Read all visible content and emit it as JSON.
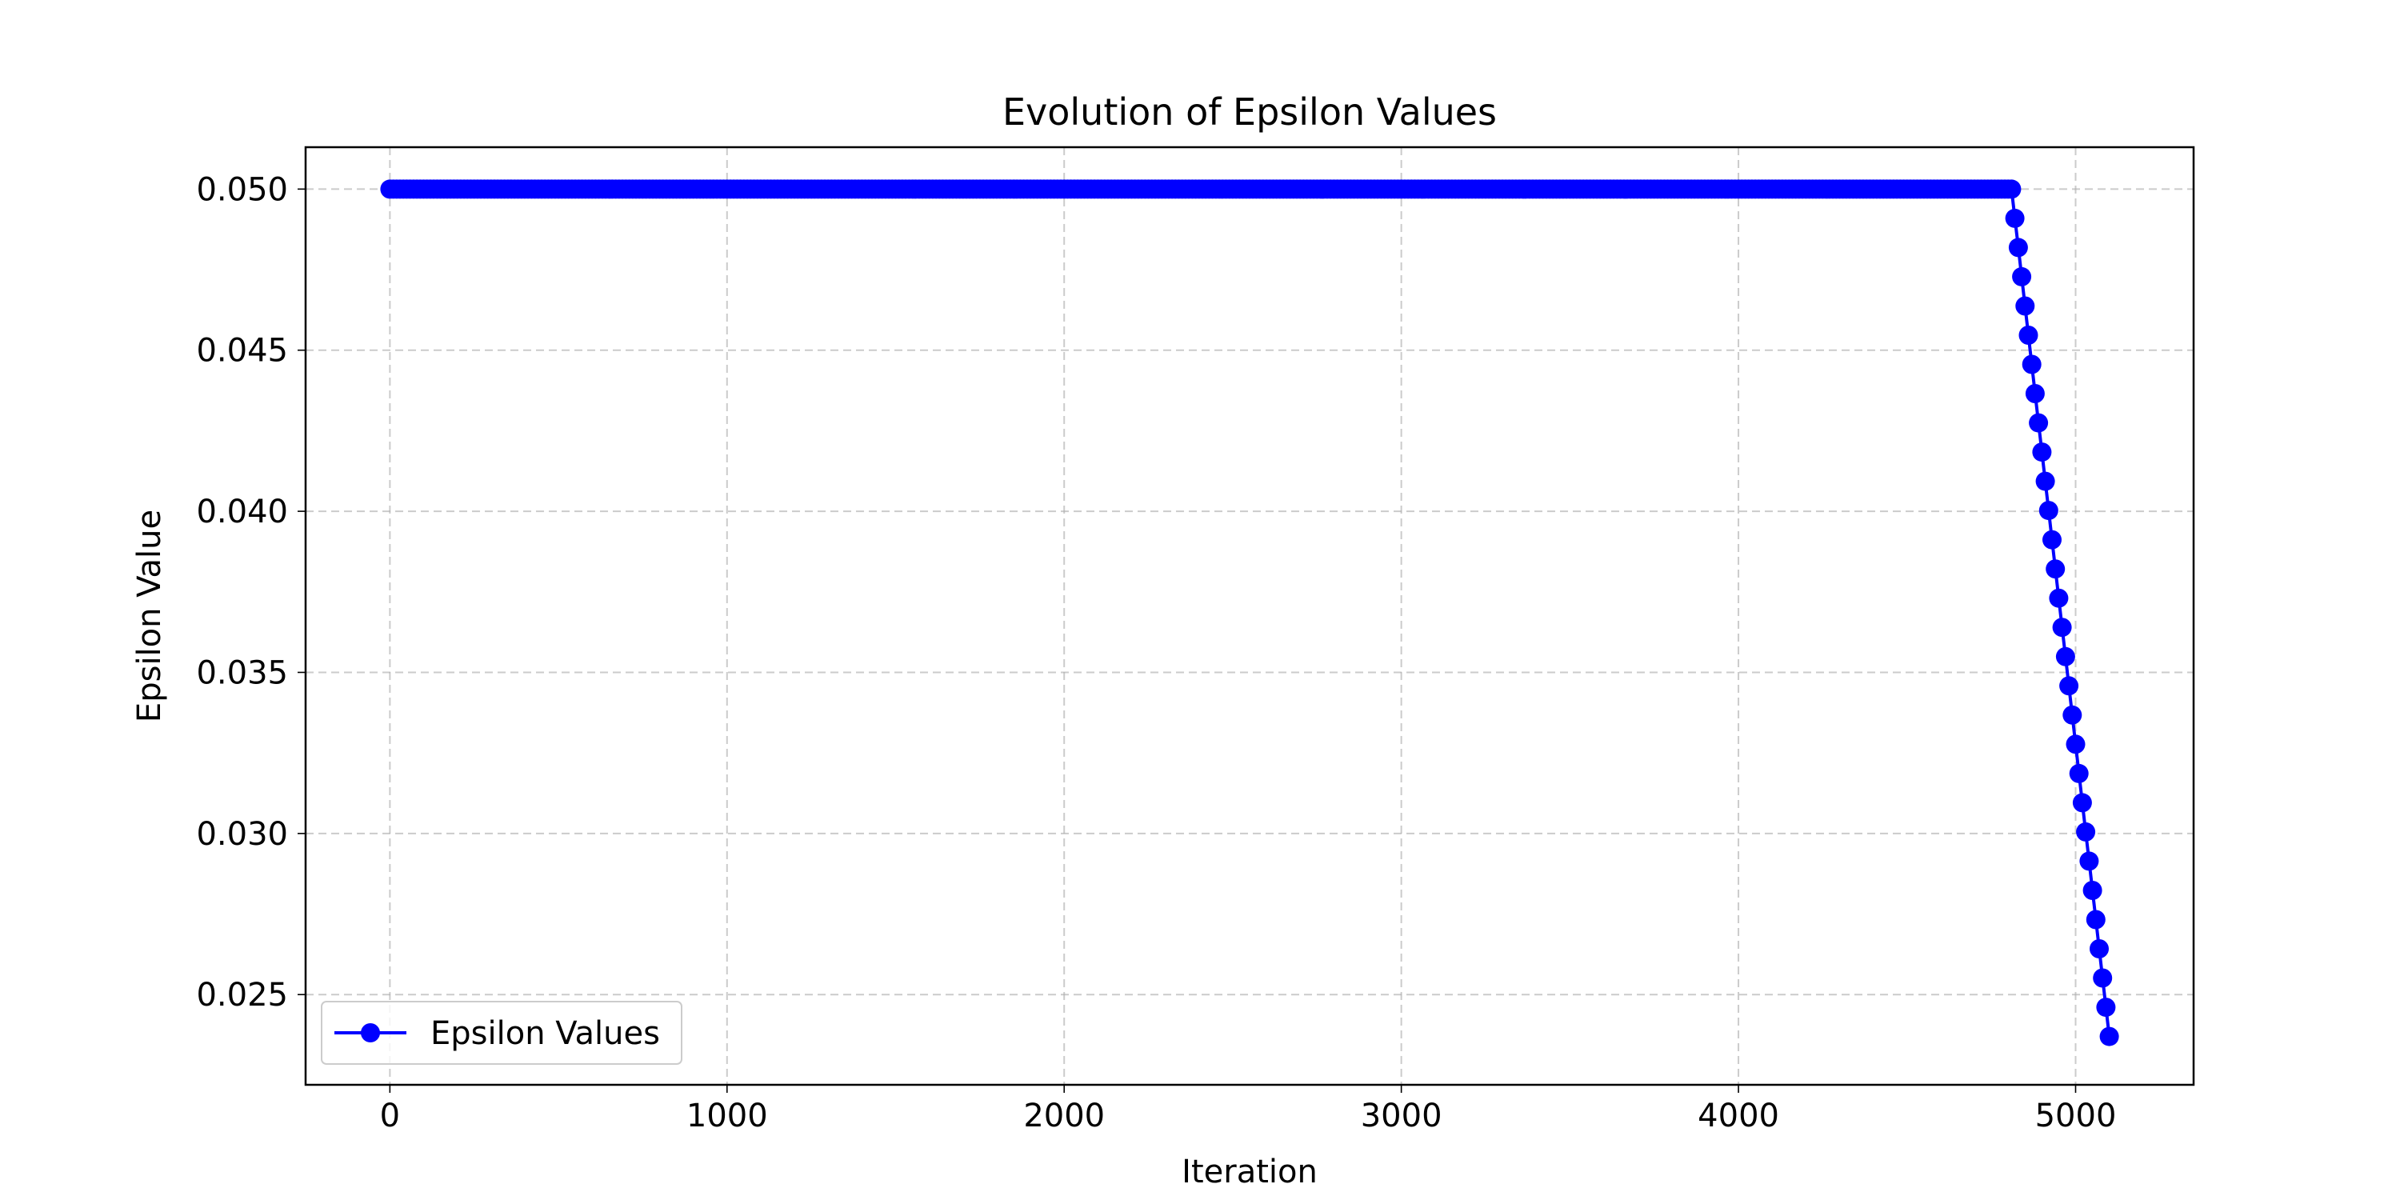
{
  "chart_data": {
    "type": "line",
    "title": "Evolution of Epsilon Values",
    "xlabel": "Iteration",
    "ylabel": "Epsilon Value",
    "xlim": [
      -250,
      5350
    ],
    "ylim": [
      0.0222,
      0.0513
    ],
    "xticks": [
      0,
      1000,
      2000,
      3000,
      4000,
      5000
    ],
    "xtick_labels": [
      "0",
      "1000",
      "2000",
      "3000",
      "4000",
      "5000"
    ],
    "yticks": [
      0.025,
      0.03,
      0.035,
      0.04,
      0.045,
      0.05
    ],
    "ytick_labels": [
      "0.025",
      "0.030",
      "0.035",
      "0.040",
      "0.045",
      "0.050"
    ],
    "grid": true,
    "legend_position": "lower-left",
    "series": [
      {
        "name": "Epsilon Values",
        "color": "#0000ff",
        "marker": "circle",
        "x_start": 0,
        "x_end": 5100,
        "step": 10,
        "constant_value": 0.05,
        "constant_until": 4810,
        "final_value": 0.0237
      }
    ]
  }
}
